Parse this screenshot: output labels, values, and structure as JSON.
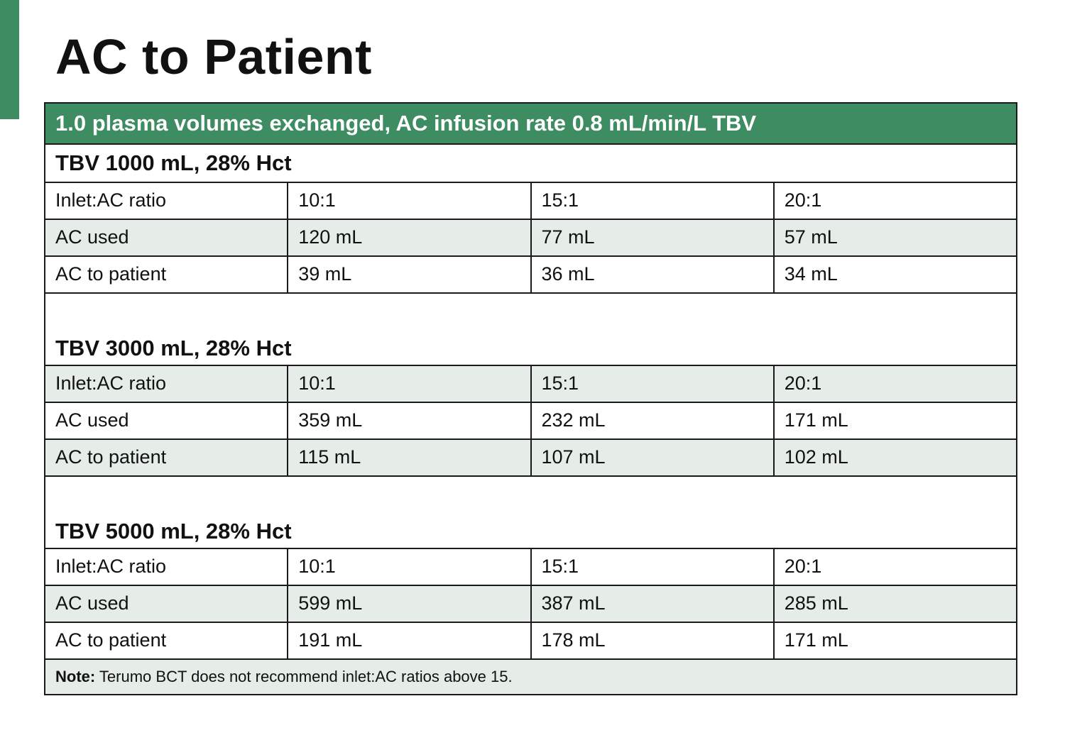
{
  "title": "AC to Patient",
  "accent_color": "#3d8c62",
  "table": {
    "header": "1.0 plasma volumes exchanged, AC infusion rate 0.8 mL/min/L TBV",
    "sections": [
      {
        "heading": "TBV 1000 mL, 28% Hct",
        "rows": [
          {
            "label": "Inlet:AC ratio",
            "values": [
              "10:1",
              "15:1",
              "20:1"
            ]
          },
          {
            "label": "AC used",
            "values": [
              "120 mL",
              "77 mL",
              "57 mL"
            ]
          },
          {
            "label": "AC to patient",
            "values": [
              "39 mL",
              "36 mL",
              "34 mL"
            ]
          }
        ]
      },
      {
        "heading": "TBV 3000 mL, 28% Hct",
        "rows": [
          {
            "label": "Inlet:AC ratio",
            "values": [
              "10:1",
              "15:1",
              "20:1"
            ]
          },
          {
            "label": "AC used",
            "values": [
              "359 mL",
              "232 mL",
              "171 mL"
            ]
          },
          {
            "label": "AC to patient",
            "values": [
              "115 mL",
              "107 mL",
              "102 mL"
            ]
          }
        ]
      },
      {
        "heading": "TBV 5000 mL, 28% Hct",
        "rows": [
          {
            "label": "Inlet:AC ratio",
            "values": [
              "10:1",
              "15:1",
              "20:1"
            ]
          },
          {
            "label": "AC used",
            "values": [
              "599 mL",
              "387 mL",
              "285 mL"
            ]
          },
          {
            "label": "AC to patient",
            "values": [
              "191 mL",
              "178 mL",
              "171 mL"
            ]
          }
        ]
      }
    ],
    "note": {
      "label": "Note:",
      "text": " Terumo BCT does not recommend inlet:AC ratios above 15."
    }
  }
}
